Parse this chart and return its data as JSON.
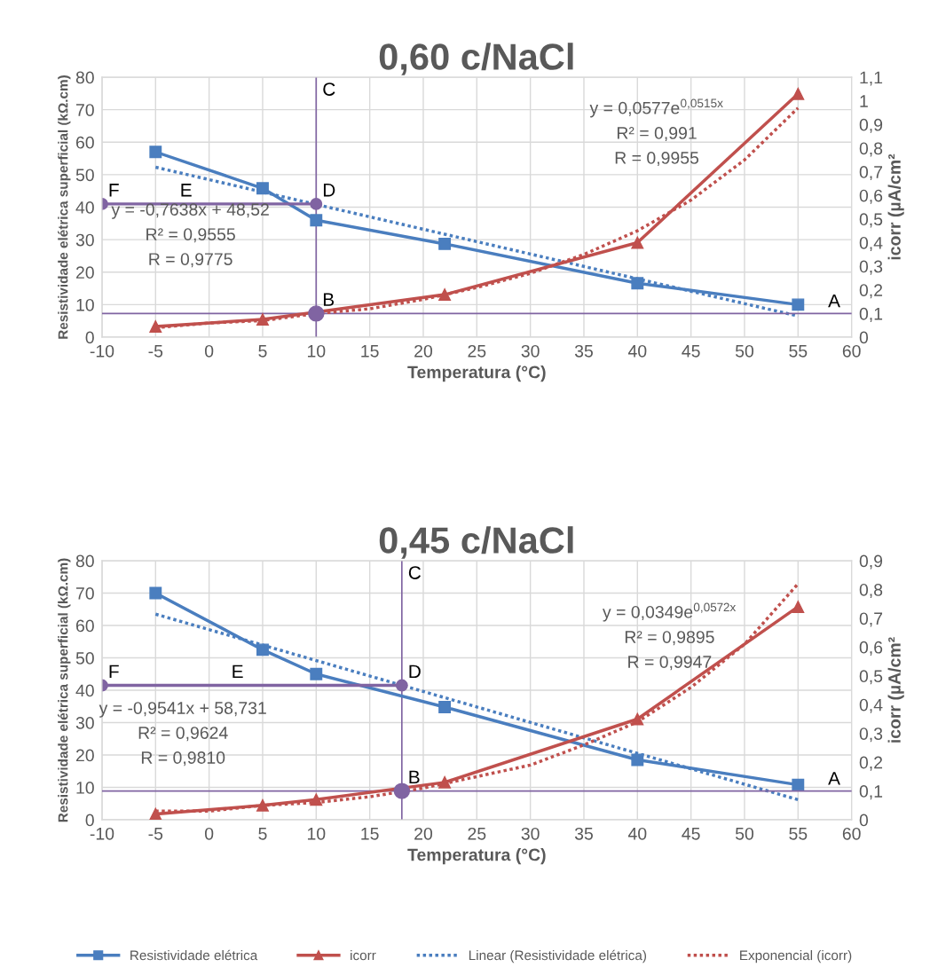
{
  "chart_data": [
    {
      "type": "line",
      "title": "0,60 c/NaCl",
      "xlabel": "Temperatura (°C)",
      "ylabel": "Resistividade elétrica superficial (kΩ.cm)",
      "y2label": "icorr (µA/cm²",
      "xlim": [
        -10,
        60
      ],
      "xticks": [
        -10,
        -5,
        0,
        5,
        10,
        15,
        20,
        25,
        30,
        35,
        40,
        45,
        50,
        55,
        60
      ],
      "ylim": [
        0,
        80
      ],
      "yticks": [
        0,
        10,
        20,
        30,
        40,
        50,
        60,
        70,
        80
      ],
      "y2lim": [
        0,
        1.1
      ],
      "y2ticks": [
        0,
        {
          "value": 0.1,
          "label": "0,1"
        },
        {
          "value": 0.2,
          "label": "0,2"
        },
        {
          "value": 0.3,
          "label": "0,3"
        },
        {
          "value": 0.4,
          "label": "0,4"
        },
        {
          "value": 0.5,
          "label": "0,5"
        },
        {
          "value": 0.6,
          "label": "0,6"
        },
        {
          "value": 0.7,
          "label": "0,7"
        },
        {
          "value": 0.8,
          "label": "0,8"
        },
        {
          "value": 0.9,
          "label": "0,9"
        },
        1,
        {
          "value": 1.1,
          "label": "1,1"
        }
      ],
      "grid": true,
      "legend": "bottom",
      "series": [
        {
          "name": "Resistividade elétrica",
          "color": "#4a7ebf",
          "marker": "square",
          "x": [
            -5,
            5,
            10,
            22,
            40,
            55
          ],
          "values": [
            57,
            45.8,
            36,
            28.7,
            16.6,
            10
          ]
        },
        {
          "name": "icorr",
          "color": "#c0504d",
          "marker": "triangle",
          "axis": "y2",
          "x": [
            -5,
            5,
            22,
            40,
            55
          ],
          "values": [
            0.045,
            0.075,
            0.18,
            0.4,
            1.03
          ]
        },
        {
          "name": "Linear (Resistividade elétrica)",
          "color": "#4a7ebf",
          "line_style": "dotted",
          "x": [
            -5,
            55
          ],
          "values": [
            52.3,
            6.5
          ]
        },
        {
          "name": "Exponencial (icorr)",
          "color": "#c0504d",
          "line_style": "dotted",
          "axis": "y2",
          "x": [
            -5,
            0,
            5,
            10,
            15,
            20,
            25,
            30,
            35,
            40,
            45,
            50,
            55
          ],
          "values": [
            0.04,
            0.06,
            0.07,
            0.1,
            0.12,
            0.16,
            0.21,
            0.27,
            0.35,
            0.45,
            0.58,
            0.75,
            0.97
          ]
        },
        {
          "color": "#8064a2",
          "marker": "circle",
          "x": [
            -10,
            10
          ],
          "values": [
            41,
            41
          ]
        },
        {
          "type": "scatter",
          "color": "#8064a2",
          "marker": "circle",
          "axis": "y2",
          "x": [
            10
          ],
          "values": [
            0.1
          ]
        }
      ],
      "ref_lines": [
        {
          "axis": "y2",
          "value": 0.1,
          "label": "A",
          "color": "#8064a2"
        },
        {
          "axis": "x",
          "value": 10,
          "label": "C",
          "color": "#8064a2"
        }
      ],
      "annotations": [
        "y = -0,7638x + 48,52\nR² = 0,9555\nR = 0,9775",
        "y = 0,0577e$^{0,0515x}$\nR² = 0,991\nR = 0,9955",
        {
          "text": "B",
          "x": 10,
          "y": 7.3
        },
        {
          "text": "D",
          "x": 10,
          "y": 41
        },
        {
          "text": "E",
          "x": -3.3,
          "y": 41
        },
        {
          "text": "F",
          "x": -10,
          "y": 41
        }
      ]
    },
    {
      "type": "line",
      "title": "0,45 c/NaCl",
      "xlabel": "Temperatura (°C)",
      "ylabel": "Resistividade elétrica superficial (kΩ.cm)",
      "y2label": "icorr (µA/cm²",
      "xlim": [
        -10,
        60
      ],
      "xticks": [
        -10,
        -5,
        0,
        5,
        10,
        15,
        20,
        25,
        30,
        35,
        40,
        45,
        50,
        55,
        60
      ],
      "ylim": [
        0,
        80
      ],
      "yticks": [
        0,
        10,
        20,
        30,
        40,
        50,
        60,
        70,
        80
      ],
      "y2lim": [
        0,
        0.9
      ],
      "y2ticks": [
        0,
        {
          "value": 0.1,
          "label": "0,1"
        },
        {
          "value": 0.2,
          "label": "0,2"
        },
        {
          "value": 0.3,
          "label": "0,3"
        },
        {
          "value": 0.4,
          "label": "0,4"
        },
        {
          "value": 0.5,
          "label": "0,5"
        },
        {
          "value": 0.6,
          "label": "0,6"
        },
        {
          "value": 0.7,
          "label": "0,7"
        },
        {
          "value": 0.8,
          "label": "0,8"
        },
        {
          "value": 0.9,
          "label": "0,9"
        }
      ],
      "grid": true,
      "series": [
        {
          "name": "Resistividade elétrica",
          "color": "#4a7ebf",
          "marker": "square",
          "x": [
            -5,
            5,
            10,
            22,
            40,
            55
          ],
          "values": [
            70,
            52.5,
            45,
            34.8,
            18.5,
            10.8
          ]
        },
        {
          "name": "icorr",
          "color": "#c0504d",
          "marker": "triangle",
          "axis": "y2",
          "x": [
            -5,
            5,
            10,
            22,
            40,
            55
          ],
          "values": [
            0.02,
            0.05,
            0.07,
            0.13,
            0.35,
            0.74
          ]
        },
        {
          "name": "Linear (Resistividade elétrica)",
          "color": "#4a7ebf",
          "line_style": "dotted",
          "x": [
            -5,
            55
          ],
          "values": [
            63.5,
            6.2
          ]
        },
        {
          "name": "Exponencial (icorr)",
          "color": "#c0504d",
          "line_style": "dotted",
          "axis": "y2",
          "x": [
            -5,
            0,
            5,
            10,
            15,
            20,
            25,
            30,
            35,
            40,
            45,
            50,
            55
          ],
          "values": [
            0.03,
            0.03,
            0.05,
            0.06,
            0.08,
            0.11,
            0.15,
            0.19,
            0.26,
            0.34,
            0.46,
            0.61,
            0.82
          ]
        },
        {
          "color": "#8064a2",
          "marker": "circle",
          "x": [
            -10,
            18
          ],
          "values": [
            41.5,
            41.5
          ]
        },
        {
          "type": "scatter",
          "color": "#8064a2",
          "marker": "circle",
          "axis": "y2",
          "x": [
            18
          ],
          "values": [
            0.1
          ]
        }
      ],
      "ref_lines": [
        {
          "axis": "y2",
          "value": 0.1,
          "label": "A",
          "color": "#8064a2"
        },
        {
          "axis": "x",
          "value": 18,
          "label": "C",
          "color": "#8064a2"
        }
      ],
      "annotations": [
        "y = -0,9541x + 58,731\nR² = 0,9624\nR = 0,9810",
        "y = 0,0349e$^{0,0572x}$\nR² = 0,9895\nR = 0,9947",
        {
          "text": "B",
          "x": 18,
          "y": 8.9
        },
        {
          "text": "D",
          "x": 18,
          "y": 41.5
        },
        {
          "text": "E",
          "x": 1.5,
          "y": 41.5
        },
        {
          "text": "F",
          "x": -10,
          "y": 41.5
        }
      ]
    }
  ]
}
